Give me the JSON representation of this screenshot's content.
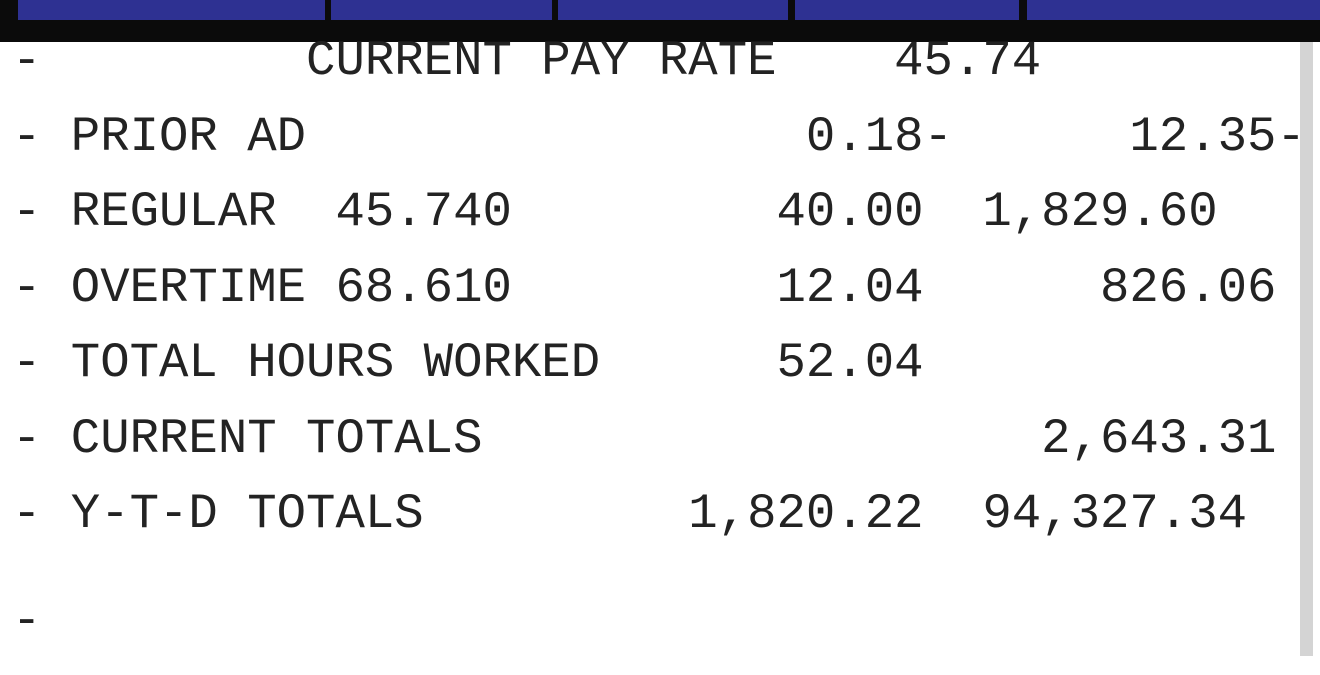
{
  "colors": {
    "header_cell_blue": "#2e3192",
    "header_border_black": "#0b0b0b",
    "scrollbar_cap_navy": "#1e1f6e",
    "scrollbar_gray": "#d4d4d4",
    "report_text": "#232323",
    "background": "#ffffff"
  },
  "header_row": {
    "cells": [
      "",
      "",
      "",
      "",
      ""
    ]
  },
  "report": {
    "lines": [
      "-         CURRENT PAY RATE    45.74",
      "- PRIOR AD                 0.18-      12.35-",
      "- REGULAR  45.740         40.00  1,829.60",
      "- OVERTIME 68.610         12.04      826.06",
      "- TOTAL HOURS WORKED      52.04",
      "- CURRENT TOTALS                   2,643.31",
      "- Y-T-D TOTALS         1,820.22  94,327.34",
      "-"
    ],
    "rows": [
      {
        "label": "CURRENT PAY RATE",
        "rate": "",
        "hours": "",
        "amount": "45.74"
      },
      {
        "label": "PRIOR AD",
        "rate": "",
        "hours": "0.18-",
        "amount": "12.35-"
      },
      {
        "label": "REGULAR",
        "rate": "45.740",
        "hours": "40.00",
        "amount": "1,829.60"
      },
      {
        "label": "OVERTIME",
        "rate": "68.610",
        "hours": "12.04",
        "amount": "826.06"
      },
      {
        "label": "TOTAL HOURS WORKED",
        "rate": "",
        "hours": "52.04",
        "amount": ""
      },
      {
        "label": "CURRENT TOTALS",
        "rate": "",
        "hours": "",
        "amount": "2,643.31"
      },
      {
        "label": "Y-T-D TOTALS",
        "rate": "",
        "hours": "1,820.22",
        "amount": "94,327.34"
      }
    ]
  }
}
